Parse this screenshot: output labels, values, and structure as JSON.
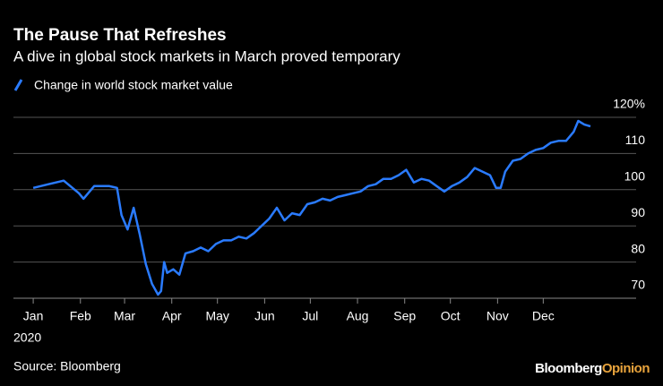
{
  "chart_data": {
    "type": "line",
    "title": "The Pause That Refreshes",
    "subtitle": "A dive in global stock markets in March proved temporary",
    "source": "Source: Bloomberg",
    "brand": [
      "Bloomberg",
      "Opinion"
    ],
    "year_label": "2020",
    "xlim": [
      -13,
      396
    ],
    "xticks": [
      {
        "value": 0,
        "label": "Jan"
      },
      {
        "value": 31,
        "label": "Feb"
      },
      {
        "value": 60,
        "label": "Mar"
      },
      {
        "value": 91,
        "label": "Apr"
      },
      {
        "value": 121,
        "label": "May"
      },
      {
        "value": 152,
        "label": "Jun"
      },
      {
        "value": 182,
        "label": "Jul"
      },
      {
        "value": 213,
        "label": "Aug"
      },
      {
        "value": 244,
        "label": "Sep"
      },
      {
        "value": 274,
        "label": "Oct"
      },
      {
        "value": 305,
        "label": "Nov"
      },
      {
        "value": 335,
        "label": "Dec"
      }
    ],
    "ylim": [
      70,
      120
    ],
    "yticks": [
      70,
      80,
      90,
      100,
      110,
      {
        "value": 120,
        "label": "120%"
      }
    ],
    "grid": true,
    "series": [
      {
        "name": "Change in world stock market value",
        "color": "#2a7bff",
        "x": [
          0,
          10,
          20,
          30,
          33,
          40,
          50,
          55,
          58,
          62,
          66,
          70,
          74,
          78,
          82,
          84,
          86,
          88,
          92,
          96,
          100,
          105,
          110,
          115,
          120,
          125,
          130,
          135,
          140,
          145,
          150,
          155,
          160,
          165,
          170,
          175,
          180,
          185,
          190,
          195,
          200,
          205,
          210,
          215,
          220,
          225,
          230,
          235,
          240,
          245,
          250,
          255,
          260,
          265,
          270,
          275,
          280,
          285,
          290,
          295,
          300,
          304,
          307,
          310,
          315,
          320,
          325,
          330,
          335,
          340,
          345,
          350,
          355,
          358,
          362,
          366
        ],
        "values": [
          100.5,
          101.5,
          102.5,
          99,
          97.5,
          101,
          101,
          100.5,
          93,
          89,
          95,
          87.6,
          79.4,
          74,
          71,
          72,
          80,
          77,
          78,
          76.5,
          82.4,
          83,
          84,
          83,
          85,
          86,
          86,
          87,
          86.5,
          88,
          90,
          92,
          95,
          91.5,
          93.5,
          93,
          96,
          96.5,
          97.5,
          97,
          98,
          98.5,
          99,
          99.5,
          101,
          101.5,
          103,
          103,
          104,
          105.5,
          102,
          103,
          102.5,
          101,
          99.5,
          101,
          102,
          103.5,
          106,
          105,
          104,
          100.5,
          100.5,
          105,
          108,
          108.5,
          110,
          111,
          111.5,
          113,
          113.5,
          113.5,
          116,
          119,
          118,
          117.5
        ]
      }
    ]
  }
}
